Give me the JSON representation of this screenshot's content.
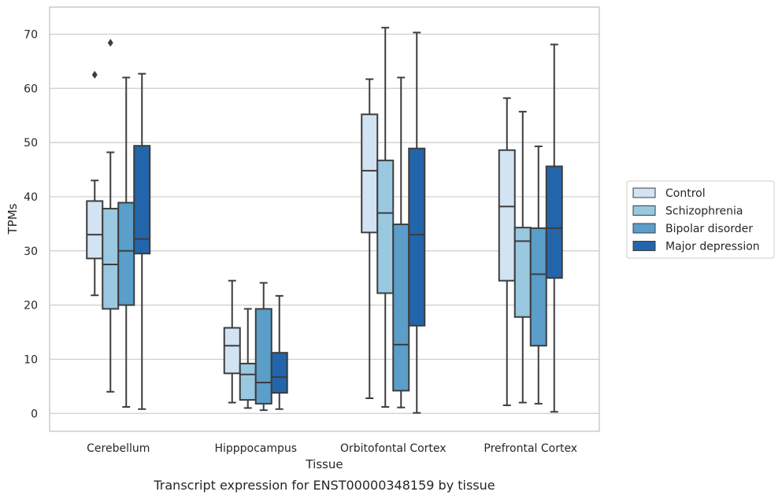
{
  "chart_data": {
    "type": "box",
    "title": "",
    "caption": "Transcript expression for ENST00000348159 by tissue",
    "xlabel": "Tissue",
    "ylabel": "TPMs",
    "ylim": [
      -3.3,
      75
    ],
    "yticks": [
      0,
      10,
      20,
      30,
      40,
      50,
      60,
      70
    ],
    "grid": true,
    "legend_position": "right",
    "categories": [
      "Cerebellum",
      "Hipppocampus",
      "Orbitofontal Cortex",
      "Prefrontal Cortex"
    ],
    "series": [
      {
        "name": "Control",
        "color": "#d2e3f3",
        "boxes": [
          {
            "whislo": 21.8,
            "q1": 28.6,
            "med": 33.0,
            "q3": 39.2,
            "whishi": 43.0,
            "fliers": [
              62.5
            ]
          },
          {
            "whislo": 2.0,
            "q1": 7.4,
            "med": 12.5,
            "q3": 15.8,
            "whishi": 24.5,
            "fliers": []
          },
          {
            "whislo": 2.8,
            "q1": 33.4,
            "med": 44.8,
            "q3": 55.2,
            "whishi": 61.7,
            "fliers": []
          },
          {
            "whislo": 1.5,
            "q1": 24.5,
            "med": 38.2,
            "q3": 48.6,
            "whishi": 58.2,
            "fliers": []
          }
        ]
      },
      {
        "name": "Schizophrenia",
        "color": "#9ac8e0",
        "boxes": [
          {
            "whislo": 4.0,
            "q1": 19.3,
            "med": 27.5,
            "q3": 37.8,
            "whishi": 48.2,
            "fliers": [
              68.4
            ]
          },
          {
            "whislo": 1.0,
            "q1": 2.5,
            "med": 7.2,
            "q3": 9.2,
            "whishi": 19.3,
            "fliers": []
          },
          {
            "whislo": 1.2,
            "q1": 22.2,
            "med": 37.0,
            "q3": 46.7,
            "whishi": 71.2,
            "fliers": []
          },
          {
            "whislo": 2.0,
            "q1": 17.8,
            "med": 31.8,
            "q3": 34.3,
            "whishi": 55.7,
            "fliers": []
          }
        ]
      },
      {
        "name": "Bipolar disorder",
        "color": "#5a9ec9",
        "boxes": [
          {
            "whislo": 1.2,
            "q1": 20.0,
            "med": 30.0,
            "q3": 38.9,
            "whishi": 62.0,
            "fliers": []
          },
          {
            "whislo": 0.6,
            "q1": 1.8,
            "med": 5.7,
            "q3": 19.3,
            "whishi": 24.1,
            "fliers": []
          },
          {
            "whislo": 1.1,
            "q1": 4.2,
            "med": 12.7,
            "q3": 34.9,
            "whishi": 62.0,
            "fliers": []
          },
          {
            "whislo": 1.8,
            "q1": 12.5,
            "med": 25.7,
            "q3": 34.2,
            "whishi": 49.3,
            "fliers": []
          }
        ]
      },
      {
        "name": "Major depression",
        "color": "#2365aa",
        "boxes": [
          {
            "whislo": 0.8,
            "q1": 29.5,
            "med": 32.2,
            "q3": 49.4,
            "whishi": 62.7,
            "fliers": []
          },
          {
            "whislo": 0.8,
            "q1": 3.8,
            "med": 6.7,
            "q3": 11.2,
            "whishi": 21.7,
            "fliers": []
          },
          {
            "whislo": 0.1,
            "q1": 16.2,
            "med": 33.0,
            "q3": 48.9,
            "whishi": 70.3,
            "fliers": []
          },
          {
            "whislo": 0.3,
            "q1": 25.0,
            "med": 34.2,
            "q3": 45.6,
            "whishi": 68.1,
            "fliers": []
          }
        ]
      }
    ]
  }
}
